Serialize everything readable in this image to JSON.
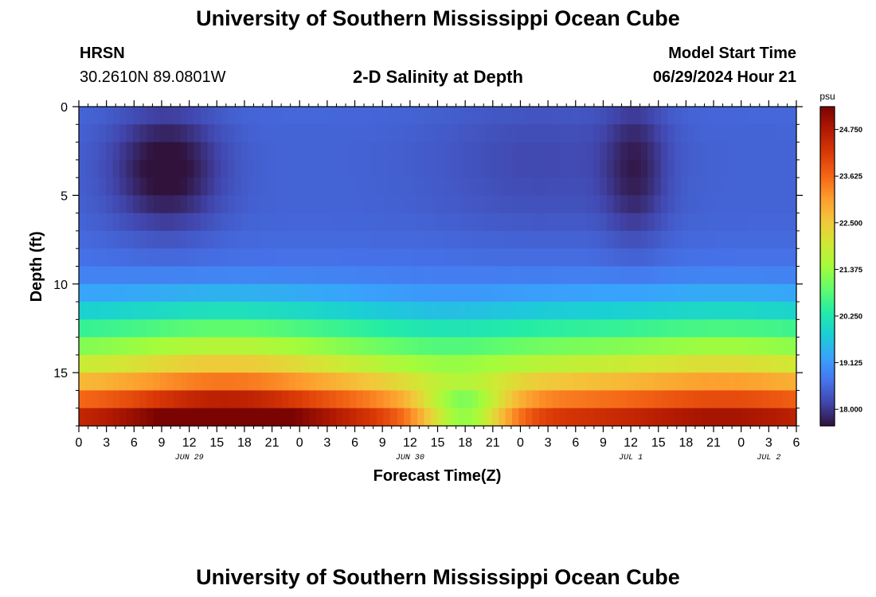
{
  "header": {
    "title_top": "University of Southern Mississippi Ocean Cube",
    "title_bottom": "University of Southern Mississippi Ocean Cube",
    "station": "HRSN",
    "coords": "30.2610N  89.0801W",
    "plot_title": "2-D Salinity at Depth",
    "model_label": "Model Start Time",
    "model_time": "06/29/2024 Hour 21"
  },
  "chart_data": {
    "type": "heatmap",
    "title": "2-D Salinity at Depth",
    "xlabel": "Forecast Time(Z)",
    "ylabel": "Depth (ft)",
    "x_hours_range": [
      0,
      78
    ],
    "y_range": [
      0,
      18
    ],
    "y_inverted": true,
    "y_ticks": [
      0,
      5,
      10,
      15
    ],
    "x_tick_labels": [
      "0",
      "3",
      "6",
      "9",
      "12",
      "15",
      "18",
      "21",
      "0",
      "3",
      "6",
      "9",
      "12",
      "15",
      "18",
      "21",
      "0",
      "3",
      "6",
      "9",
      "12",
      "15",
      "18",
      "21",
      "0",
      "3",
      "6"
    ],
    "date_labels": [
      {
        "label": "JUN 29",
        "hour": 12
      },
      {
        "label": "JUN 30",
        "hour": 36
      },
      {
        "label": "JUL 1",
        "hour": 60
      },
      {
        "label": "JUL 2",
        "hour": 75
      }
    ],
    "colorbar": {
      "unit": "psu",
      "min": 17.6,
      "max": 25.3,
      "tick_values": [
        18.0,
        19.125,
        20.25,
        21.375,
        22.5,
        23.625,
        24.75
      ],
      "tick_labels": [
        "18.000",
        "19.125",
        "20.250",
        "21.375",
        "22.500",
        "23.625",
        "24.750"
      ],
      "colors": [
        "#30123b",
        "#4145ab",
        "#4675ed",
        "#39a2fc",
        "#1bcfd4",
        "#24eca6",
        "#61fc6c",
        "#a4fc3b",
        "#d1e834",
        "#f3c63a",
        "#fe9b2d",
        "#f36315",
        "#d93806",
        "#b11901",
        "#7a0402"
      ]
    },
    "depth_profile": {
      "depth": [
        0,
        2,
        4,
        6,
        8,
        9,
        10,
        11,
        12,
        13,
        14,
        15,
        16,
        17,
        18
      ],
      "base_salinity": [
        18.55,
        18.5,
        18.5,
        18.5,
        18.6,
        18.7,
        19.0,
        19.5,
        20.1,
        20.8,
        21.4,
        22.2,
        23.0,
        23.9,
        24.7
      ]
    },
    "features": [
      {
        "name": "fresh core 1",
        "hour": 9.5,
        "depth": 3,
        "salinity": 17.7
      },
      {
        "name": "fresh core 2",
        "hour": 60.5,
        "depth": 3,
        "salinity": 17.9
      },
      {
        "name": "bottom saline max",
        "hour": 16,
        "depth": 17.8,
        "salinity": 25.2
      },
      {
        "name": "bottom freshening",
        "hour": 42,
        "depth": 17,
        "salinity": 21.2
      }
    ]
  }
}
